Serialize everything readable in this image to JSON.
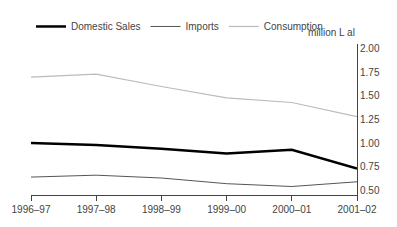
{
  "chart_data": {
    "type": "line",
    "categories": [
      "1996–97",
      "1997–98",
      "1998–99",
      "1999–00",
      "2000–01",
      "2001–02"
    ],
    "series": [
      {
        "name": "Domestic Sales",
        "color": "#000000",
        "values": [
          1.0,
          0.98,
          0.94,
          0.89,
          0.93,
          0.73
        ]
      },
      {
        "name": "Imports",
        "color": "#555555",
        "values": [
          0.64,
          0.66,
          0.63,
          0.57,
          0.54,
          0.59
        ]
      },
      {
        "name": "Consumption",
        "color": "#bbbbbb",
        "values": [
          1.7,
          1.73,
          1.6,
          1.48,
          1.43,
          1.28
        ]
      }
    ],
    "ylabel": "million L al",
    "ylim": [
      0.45,
      2.05
    ],
    "yticks": [
      {
        "value": 0.5,
        "label": "0.50"
      },
      {
        "value": 0.75,
        "label": "0.75"
      },
      {
        "value": 1.0,
        "label": "1.00"
      },
      {
        "value": 1.25,
        "label": "1.25"
      },
      {
        "value": 1.5,
        "label": "1.50"
      },
      {
        "value": 1.75,
        "label": "1.75"
      },
      {
        "value": 2.0,
        "label": "2.00"
      }
    ],
    "legend": "upper left",
    "grid": false
  }
}
